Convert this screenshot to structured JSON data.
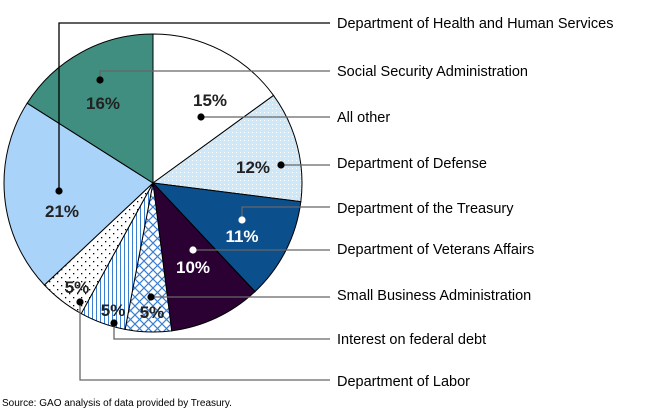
{
  "chart_data": {
    "type": "pie",
    "title": "",
    "start": "12 o'clock, clockwise",
    "slices": [
      {
        "label": "All other",
        "value": 15,
        "value_label": "15%",
        "color": "#ffffff",
        "fill_pattern": "solid"
      },
      {
        "label": "Department of Defense",
        "value": 12,
        "value_label": "12%",
        "color": "#cfe8f8",
        "fill_pattern": "fine-dots"
      },
      {
        "label": "Department of the Treasury",
        "value": 11,
        "value_label": "11%",
        "color": "#0b4f8c",
        "fill_pattern": "fine-dots"
      },
      {
        "label": "Department of Veterans Affairs",
        "value": 10,
        "value_label": "10%",
        "color": "#2b0033",
        "fill_pattern": "fine-dots"
      },
      {
        "label": "Small Business Administration",
        "value": 5,
        "value_label": "5%",
        "color": "#3a7fd0",
        "fill_pattern": "crosshatch"
      },
      {
        "label": "Interest on federal debt",
        "value": 5,
        "value_label": "5%",
        "color": "#3a7fd0",
        "fill_pattern": "vertical-stripes"
      },
      {
        "label": "Department of Labor",
        "value": 5,
        "value_label": "5%",
        "color": "#000000",
        "fill_pattern": "sparse-dots"
      },
      {
        "label": "Department of Health and Human Services",
        "value": 21,
        "value_label": "21%",
        "color": "#a9d3f8",
        "fill_pattern": "fine-dots"
      },
      {
        "label": "Social Security Administration",
        "value": 16,
        "value_label": "16%",
        "color": "#3f8e80",
        "fill_pattern": "fine-dots"
      }
    ],
    "legend": "callout labels at right",
    "source": "Source: GAO analysis of data provided by Treasury."
  }
}
